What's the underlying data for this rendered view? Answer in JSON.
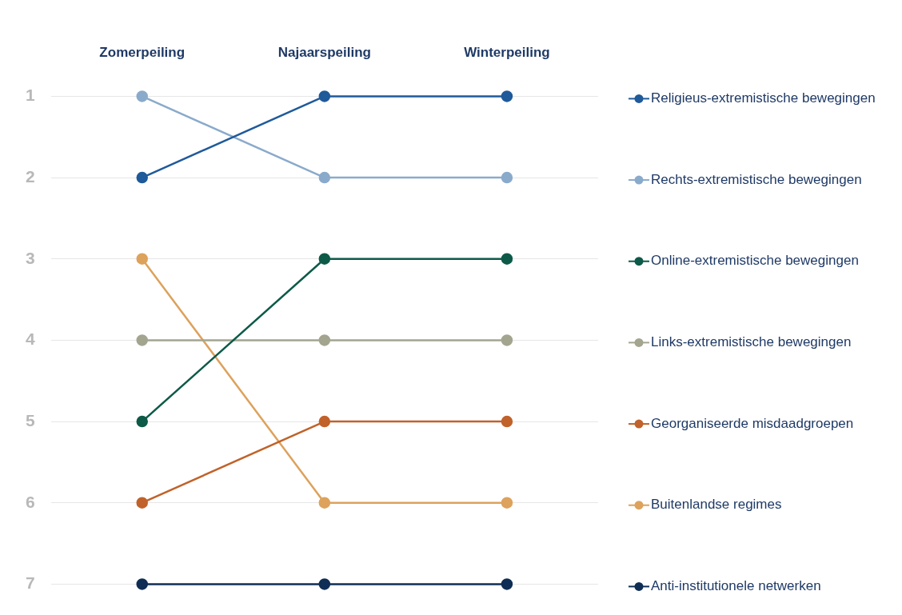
{
  "chart_data": {
    "type": "line",
    "categories": [
      "Zomerpeiling",
      "Najaarspeiling",
      "Winterpeiling"
    ],
    "ylim": [
      7,
      1
    ],
    "yticks": [
      1,
      2,
      3,
      4,
      5,
      6,
      7
    ],
    "grid": "y",
    "marker": "circle",
    "legend": "right",
    "series": [
      {
        "name": "Religieus-extremistische bewegingen",
        "color": "#1f5a9a",
        "values": [
          2,
          1,
          1
        ]
      },
      {
        "name": "Rechts-extremistische bewegingen",
        "color": "#8aaacb",
        "values": [
          1,
          2,
          2
        ]
      },
      {
        "name": "Online-extremistische bewegingen",
        "color": "#0d5a48",
        "values": [
          5,
          3,
          3
        ]
      },
      {
        "name": "Links-extremistische bewegingen",
        "color": "#a3a58f",
        "values": [
          4,
          4,
          4
        ]
      },
      {
        "name": "Georganiseerde misdaadgroepen",
        "color": "#c0622a",
        "values": [
          6,
          5,
          5
        ]
      },
      {
        "name": "Buitenlandse regimes",
        "color": "#dda25c",
        "values": [
          3,
          6,
          6
        ]
      },
      {
        "name": "Anti-institutionele netwerken",
        "color": "#0f2e55",
        "values": [
          7,
          7,
          7
        ]
      }
    ]
  }
}
